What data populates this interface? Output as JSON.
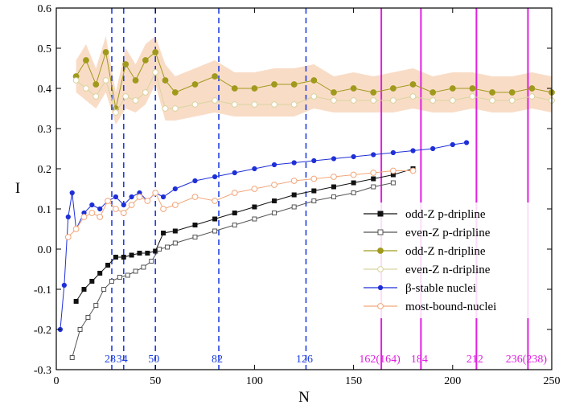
{
  "chart_data": {
    "type": "scatter",
    "title": "",
    "xlabel": "N",
    "ylabel": "I",
    "xlim": [
      0,
      250
    ],
    "ylim": [
      -0.3,
      0.6
    ],
    "x_ticks": [
      0,
      50,
      100,
      150,
      200,
      250
    ],
    "y_ticks": [
      -0.3,
      -0.2,
      -0.1,
      0.0,
      0.1,
      0.2,
      0.3,
      0.4,
      0.5,
      0.6
    ],
    "legend_position": "lower-right",
    "magic_numbers_known": {
      "color": "#1f3fe0",
      "values": [
        28,
        34,
        50,
        82,
        126
      ],
      "labels": [
        "28",
        "34",
        "50",
        "82",
        "126"
      ]
    },
    "magic_numbers_predicted": {
      "color": "#e020e0",
      "values": [
        164,
        184,
        212,
        238
      ],
      "labels": [
        "162(164)",
        "184",
        "212",
        "236(238)"
      ]
    },
    "series": [
      {
        "name": "odd-Z p-dripline",
        "color": "#111111",
        "marker": "square-filled",
        "x": [
          10,
          14,
          18,
          22,
          26,
          30,
          34,
          38,
          42,
          46,
          50,
          54,
          60,
          70,
          80,
          90,
          100,
          110,
          120,
          130,
          140,
          150,
          160,
          170,
          180
        ],
        "y": [
          -0.13,
          -0.1,
          -0.08,
          -0.06,
          -0.04,
          -0.02,
          -0.02,
          -0.015,
          -0.01,
          -0.01,
          -0.005,
          0.04,
          0.045,
          0.06,
          0.075,
          0.09,
          0.105,
          0.12,
          0.135,
          0.145,
          0.155,
          0.165,
          0.175,
          0.185,
          0.2
        ]
      },
      {
        "name": "even-Z p-dripline",
        "color": "#555555",
        "marker": "square-open",
        "x": [
          8,
          12,
          16,
          20,
          24,
          28,
          32,
          36,
          40,
          44,
          48,
          52,
          56,
          60,
          70,
          80,
          90,
          100,
          110,
          120,
          130,
          140,
          150,
          160,
          170
        ],
        "y": [
          -0.27,
          -0.2,
          -0.17,
          -0.14,
          -0.1,
          -0.08,
          -0.07,
          -0.065,
          -0.055,
          -0.045,
          -0.03,
          0.0,
          0.005,
          0.015,
          0.03,
          0.045,
          0.06,
          0.075,
          0.09,
          0.105,
          0.12,
          0.13,
          0.14,
          0.155,
          0.165
        ]
      },
      {
        "name": "odd-Z n-dripline",
        "color": "#a09a1c",
        "marker": "circle-filled",
        "x": [
          10,
          15,
          20,
          25,
          30,
          35,
          40,
          45,
          50,
          55,
          60,
          70,
          80,
          90,
          100,
          110,
          120,
          130,
          140,
          150,
          160,
          170,
          180,
          190,
          200,
          210,
          220,
          230,
          240,
          250
        ],
        "y": [
          0.43,
          0.47,
          0.41,
          0.49,
          0.35,
          0.46,
          0.42,
          0.47,
          0.49,
          0.42,
          0.39,
          0.41,
          0.43,
          0.4,
          0.4,
          0.41,
          0.41,
          0.42,
          0.39,
          0.4,
          0.39,
          0.4,
          0.41,
          0.39,
          0.4,
          0.4,
          0.39,
          0.39,
          0.4,
          0.39
        ]
      },
      {
        "name": "even-Z n-dripline",
        "color": "#d8d4a0",
        "marker": "circle-open",
        "x": [
          10,
          15,
          20,
          25,
          30,
          35,
          40,
          45,
          50,
          55,
          60,
          70,
          80,
          90,
          100,
          110,
          120,
          130,
          140,
          150,
          160,
          170,
          180,
          190,
          200,
          210,
          220,
          230,
          240,
          250
        ],
        "y": [
          0.42,
          0.4,
          0.38,
          0.42,
          0.34,
          0.38,
          0.37,
          0.39,
          0.44,
          0.35,
          0.35,
          0.36,
          0.37,
          0.36,
          0.36,
          0.36,
          0.36,
          0.38,
          0.37,
          0.37,
          0.37,
          0.37,
          0.38,
          0.37,
          0.37,
          0.38,
          0.37,
          0.37,
          0.38,
          0.37
        ]
      },
      {
        "name": "β-stable nuclei",
        "color": "#1f2fd8",
        "marker": "circle-filled-small",
        "x": [
          2,
          4,
          6,
          8,
          10,
          14,
          18,
          22,
          26,
          30,
          34,
          38,
          42,
          46,
          50,
          54,
          60,
          70,
          80,
          90,
          100,
          110,
          120,
          130,
          140,
          150,
          160,
          170,
          180,
          190,
          200,
          207
        ],
        "y": [
          -0.2,
          -0.09,
          0.08,
          0.14,
          0.05,
          0.09,
          0.11,
          0.1,
          0.12,
          0.13,
          0.11,
          0.13,
          0.14,
          0.12,
          0.14,
          0.13,
          0.15,
          0.17,
          0.18,
          0.19,
          0.2,
          0.21,
          0.215,
          0.22,
          0.225,
          0.23,
          0.235,
          0.24,
          0.245,
          0.25,
          0.26,
          0.265
        ]
      },
      {
        "name": "most-bound-nuclei",
        "color": "#f2a67a",
        "marker": "circle-open",
        "x": [
          6,
          10,
          14,
          18,
          22,
          26,
          30,
          34,
          38,
          42,
          46,
          50,
          54,
          60,
          70,
          80,
          90,
          100,
          110,
          120,
          130,
          140,
          150,
          160,
          170,
          180
        ],
        "y": [
          0.03,
          0.05,
          0.08,
          0.09,
          0.08,
          0.12,
          0.1,
          0.09,
          0.11,
          0.13,
          0.12,
          0.14,
          0.1,
          0.11,
          0.13,
          0.12,
          0.14,
          0.15,
          0.16,
          0.17,
          0.175,
          0.18,
          0.185,
          0.19,
          0.195,
          0.195
        ]
      }
    ]
  }
}
